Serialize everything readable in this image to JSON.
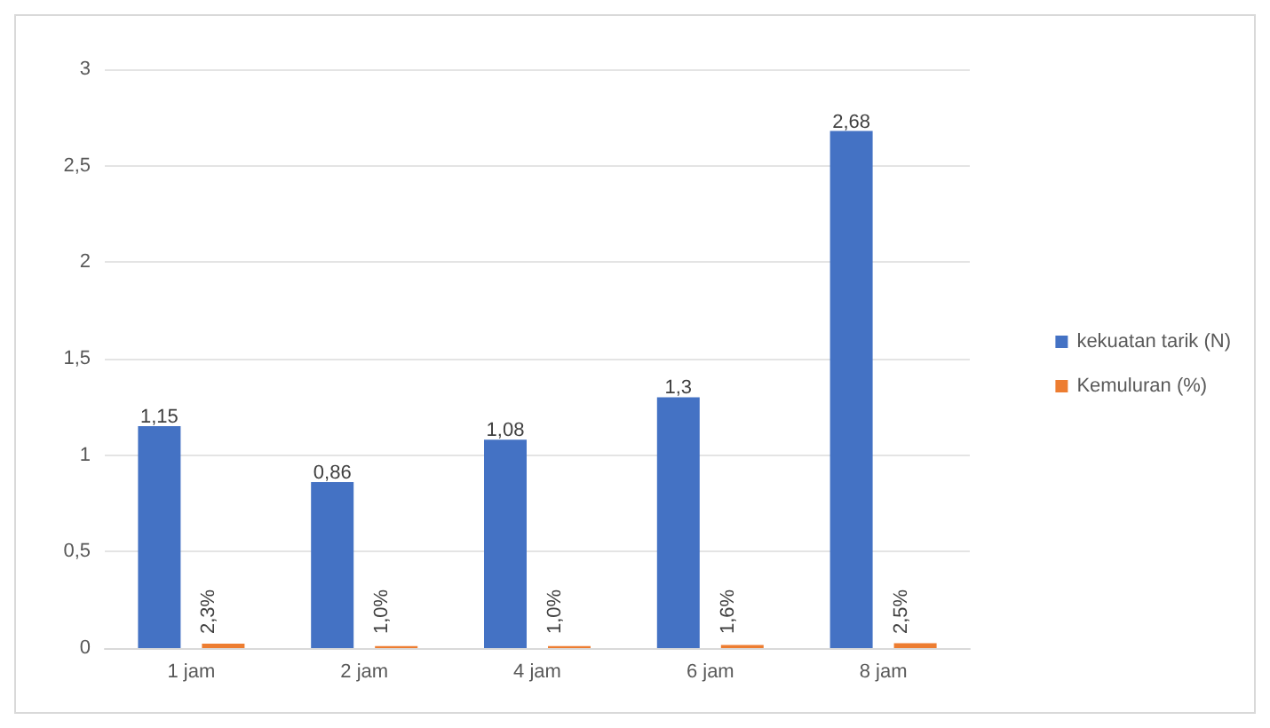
{
  "chart_data": {
    "type": "bar",
    "categories": [
      "1 jam",
      "2 jam",
      "4 jam",
      "6 jam",
      "8 jam"
    ],
    "series": [
      {
        "name": "kekuatan tarik (N)",
        "color": "#4472c4",
        "values": [
          1.15,
          0.86,
          1.08,
          1.3,
          2.68
        ],
        "value_labels": [
          "1,15",
          "0,86",
          "1,08",
          "1,3",
          "2,68"
        ]
      },
      {
        "name": "Kemuluran (%)",
        "color": "#ed7d31",
        "values": [
          0.023,
          0.01,
          0.01,
          0.016,
          0.025
        ],
        "value_labels": [
          "2,3%",
          "1,0%",
          "1,0%",
          "1,6%",
          "2,5%"
        ]
      }
    ],
    "ylim": [
      0,
      3
    ],
    "yticks": [
      0,
      {
        "value": 0.5,
        "label": "0,5"
      },
      1,
      {
        "value": 1.5,
        "label": "1,5"
      },
      2,
      {
        "value": 2.5,
        "label": "2,5"
      },
      3
    ],
    "grid": "y",
    "legend": "right"
  }
}
